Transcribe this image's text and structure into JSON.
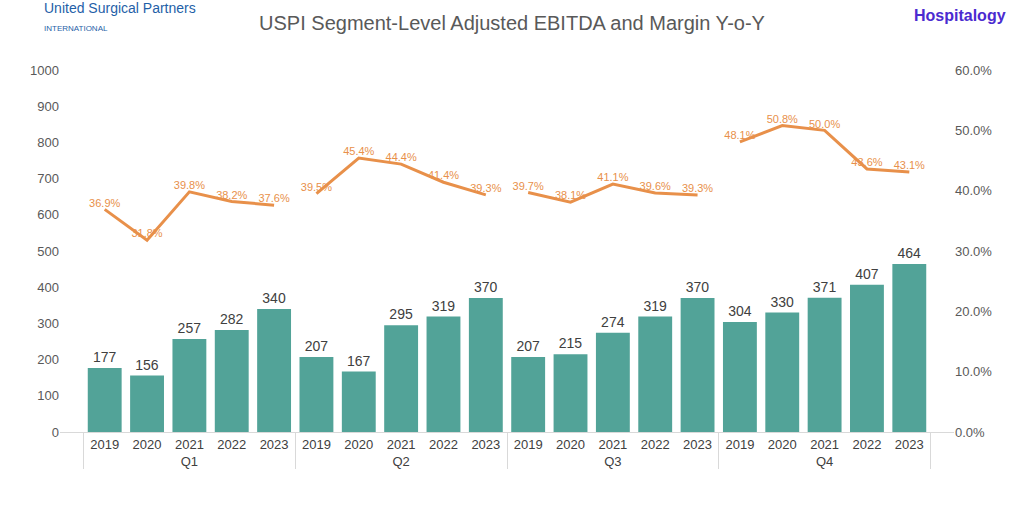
{
  "chart_data": {
    "type": "bar",
    "title": "USPI Segment-Level Adjusted EBITDA and Margin Y-o-Y",
    "logos": {
      "left": "United Surgical Partners",
      "left_sub": "INTERNATIONAL",
      "right": "Hospitalogy"
    },
    "categories": [
      "2019",
      "2020",
      "2021",
      "2022",
      "2023",
      "2019",
      "2020",
      "2021",
      "2022",
      "2023",
      "2019",
      "2020",
      "2021",
      "2022",
      "2023",
      "2019",
      "2020",
      "2021",
      "2022",
      "2023"
    ],
    "groups": [
      "Q1",
      "Q1",
      "Q1",
      "Q1",
      "Q1",
      "Q2",
      "Q2",
      "Q2",
      "Q2",
      "Q2",
      "Q3",
      "Q3",
      "Q3",
      "Q3",
      "Q3",
      "Q4",
      "Q4",
      "Q4",
      "Q4",
      "Q4"
    ],
    "grid": false,
    "ylim": [
      0,
      1000
    ],
    "yticks": [
      0,
      100,
      200,
      300,
      400,
      500,
      600,
      700,
      800,
      900,
      1000
    ],
    "y2lim": [
      0,
      60
    ],
    "y2ticks": [
      {
        "value": 0,
        "label": "0.0%"
      },
      {
        "value": 10,
        "label": "10.0%"
      },
      {
        "value": 20,
        "label": "20.0%"
      },
      {
        "value": 30,
        "label": "30.0%"
      },
      {
        "value": 40,
        "label": "40.0%"
      },
      {
        "value": 50,
        "label": "50.0%"
      },
      {
        "value": 60,
        "label": "60.0%"
      }
    ],
    "series": [
      {
        "type": "bar",
        "color": "#52a398",
        "data_labels": true,
        "values": [
          177,
          156,
          257,
          282,
          340,
          207,
          167,
          295,
          319,
          370,
          207,
          215,
          274,
          319,
          370,
          304,
          330,
          371,
          407,
          464
        ]
      },
      {
        "type": "line",
        "color": "#e8904a",
        "axis": "y2",
        "data_labels": true,
        "values": [
          36.9,
          31.8,
          39.8,
          38.2,
          37.6,
          39.5,
          45.4,
          44.4,
          41.4,
          39.3,
          39.7,
          38.1,
          41.1,
          39.6,
          39.3,
          48.1,
          50.8,
          50.0,
          43.6,
          43.1
        ],
        "value_labels": [
          "36.9%",
          "31.8%",
          "39.8%",
          "38.2%",
          "37.6%",
          "39.5%",
          "45.4%",
          "44.4%",
          "41.4%",
          "39.3%",
          "39.7%",
          "38.1%",
          "41.1%",
          "39.6%",
          "39.3%",
          "48.1%",
          "50.8%",
          "50.0%",
          "43.6%",
          "43.1%"
        ]
      }
    ]
  }
}
